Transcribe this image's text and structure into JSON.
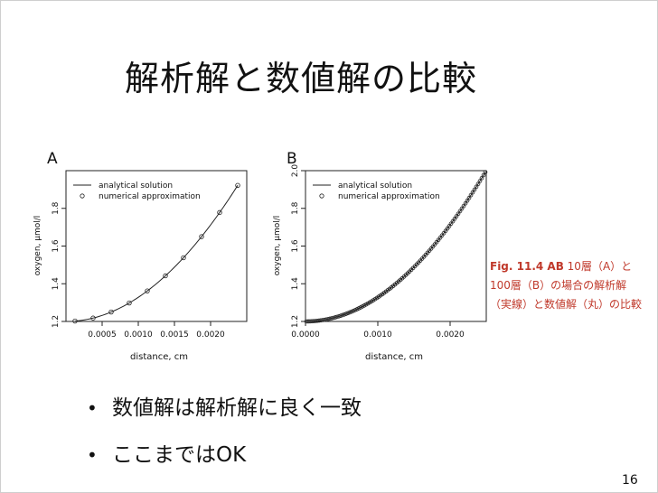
{
  "slide": {
    "title": "解析解と数値解の比較",
    "caption": {
      "fig_label": "Fig. 11.4 AB",
      "text": " 10層（A）と100層（B）の場合の解析解（実線）と数値解（丸）の比較"
    },
    "bullets": [
      "数値解は解析解に良く一致",
      "ここまではOK"
    ],
    "page_number": "16"
  },
  "chart_data": [
    {
      "type": "line",
      "panel_label": "A",
      "xlabel": "distance, cm",
      "ylabel": "oxygen, μmol/l",
      "xlim": [
        0.0,
        0.0025
      ],
      "ylim": [
        1.2,
        2.0
      ],
      "xticks": [
        0.0005,
        0.001,
        0.0015,
        0.002
      ],
      "xtick_labels": [
        "0.0005",
        "0.0010",
        "0.0015",
        "0.0020"
      ],
      "yticks": [
        1.2,
        1.4,
        1.6,
        1.8
      ],
      "ytick_labels": [
        "1.2",
        "1.4",
        "1.6",
        "1.8"
      ],
      "legend": [
        "analytical solution",
        "numerical approximation"
      ],
      "legend_position": "top-left",
      "series": [
        {
          "name": "analytical solution",
          "style": "line",
          "formula": "y = 1.2 + 128000 * x^2"
        },
        {
          "name": "numerical approximation",
          "style": "circles",
          "x": [
            0.000125,
            0.000375,
            0.000625,
            0.000875,
            0.001125,
            0.001375,
            0.001625,
            0.001875,
            0.002125,
            0.002375
          ],
          "y": [
            1.202,
            1.218,
            1.25,
            1.298,
            1.362,
            1.442,
            1.538,
            1.65,
            1.778,
            1.922
          ]
        }
      ]
    },
    {
      "type": "line",
      "panel_label": "B",
      "xlabel": "distance, cm",
      "ylabel": "oxygen, μmol/l",
      "xlim": [
        0.0,
        0.0025
      ],
      "ylim": [
        1.2,
        2.0
      ],
      "xticks": [
        0.0,
        0.001,
        0.002
      ],
      "xtick_labels": [
        "0.0000",
        "0.0010",
        "0.0020"
      ],
      "yticks": [
        1.2,
        1.4,
        1.6,
        1.8,
        2.0
      ],
      "ytick_labels": [
        "1.2",
        "1.4",
        "1.6",
        "1.8",
        "2.0"
      ],
      "legend": [
        "analytical solution",
        "numerical approximation"
      ],
      "legend_position": "top-left",
      "series": [
        {
          "name": "analytical solution",
          "style": "line",
          "formula": "y = 1.2 + 128000 * x^2"
        },
        {
          "name": "numerical approximation",
          "style": "circles",
          "n": 100,
          "x_from": 1.25e-05,
          "x_step": 2.5e-05
        }
      ]
    }
  ]
}
